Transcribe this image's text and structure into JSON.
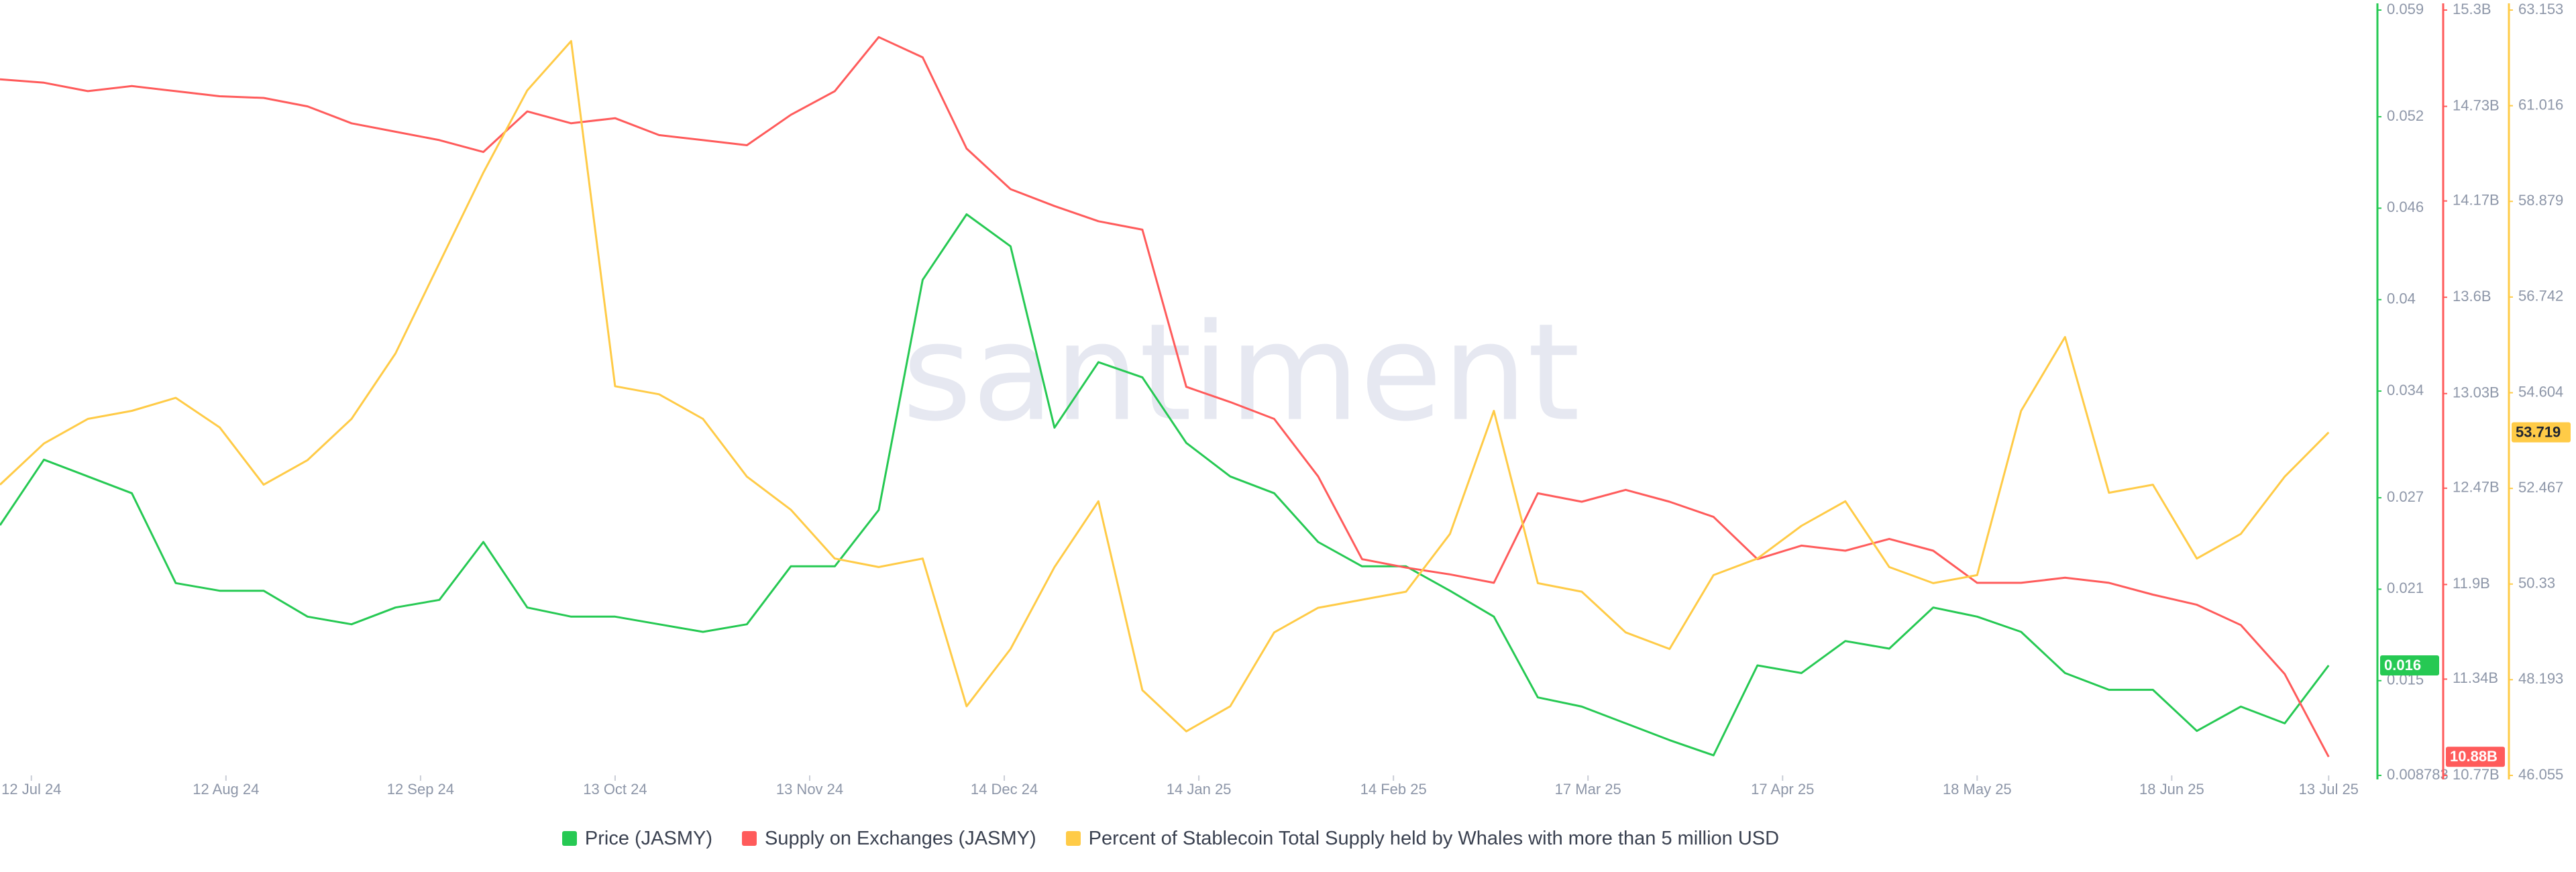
{
  "chart_data": {
    "type": "line",
    "watermark": "santiment",
    "x": [
      "2024-07-07",
      "2024-07-14",
      "2024-07-21",
      "2024-07-28",
      "2024-08-04",
      "2024-08-11",
      "2024-08-18",
      "2024-08-25",
      "2024-09-01",
      "2024-09-08",
      "2024-09-15",
      "2024-09-22",
      "2024-09-29",
      "2024-10-06",
      "2024-10-13",
      "2024-10-20",
      "2024-10-27",
      "2024-11-03",
      "2024-11-10",
      "2024-11-17",
      "2024-11-24",
      "2024-12-01",
      "2024-12-08",
      "2024-12-15",
      "2024-12-22",
      "2024-12-29",
      "2025-01-05",
      "2025-01-12",
      "2025-01-19",
      "2025-01-26",
      "2025-02-02",
      "2025-02-09",
      "2025-02-16",
      "2025-02-23",
      "2025-03-02",
      "2025-03-09",
      "2025-03-16",
      "2025-03-23",
      "2025-03-30",
      "2025-04-06",
      "2025-04-13",
      "2025-04-20",
      "2025-04-27",
      "2025-05-04",
      "2025-05-11",
      "2025-05-18",
      "2025-05-25",
      "2025-06-01",
      "2025-06-08",
      "2025-06-15",
      "2025-06-22",
      "2025-06-29",
      "2025-07-06",
      "2025-07-13"
    ],
    "xlim": [
      "2024-07-07",
      "2025-07-15"
    ],
    "xticks": [
      {
        "value": "2024-07-12",
        "label": "12 Jul 24"
      },
      {
        "value": "2024-08-12",
        "label": "12 Aug 24"
      },
      {
        "value": "2024-09-12",
        "label": "12 Sep 24"
      },
      {
        "value": "2024-10-13",
        "label": "13 Oct 24"
      },
      {
        "value": "2024-11-13",
        "label": "13 Nov 24"
      },
      {
        "value": "2024-12-14",
        "label": "14 Dec 24"
      },
      {
        "value": "2025-01-14",
        "label": "14 Jan 25"
      },
      {
        "value": "2025-02-14",
        "label": "14 Feb 25"
      },
      {
        "value": "2025-03-17",
        "label": "17 Mar 25"
      },
      {
        "value": "2025-04-17",
        "label": "17 Apr 25"
      },
      {
        "value": "2025-05-18",
        "label": "18 May 25"
      },
      {
        "value": "2025-06-18",
        "label": "18 Jun 25"
      },
      {
        "value": "2025-07-13",
        "label": "13 Jul 25"
      }
    ],
    "ylim": [
      0.008783,
      0.059
    ],
    "yticks": [
      0.059,
      0.052,
      0.046,
      0.04,
      0.034,
      0.027,
      0.021,
      0.015,
      0.008783
    ],
    "y2lim": [
      10770000000,
      15300000000
    ],
    "y2ticks": [
      {
        "value": 15300000000,
        "label": "15.3B"
      },
      {
        "value": 14730000000,
        "label": "14.73B"
      },
      {
        "value": 14170000000,
        "label": "14.17B"
      },
      {
        "value": 13600000000,
        "label": "13.6B"
      },
      {
        "value": 13030000000,
        "label": "13.03B"
      },
      {
        "value": 12470000000,
        "label": "12.47B"
      },
      {
        "value": 11900000000,
        "label": "11.9B"
      },
      {
        "value": 11340000000,
        "label": "11.34B"
      },
      {
        "value": 10770000000,
        "label": "10.77B"
      }
    ],
    "y3lim": [
      46.055,
      63.153
    ],
    "y3ticks": [
      63.153,
      61.016,
      58.879,
      56.742,
      54.604,
      52.467,
      50.33,
      48.193,
      46.055
    ],
    "series": [
      {
        "name": "Price (JASMY)",
        "color": "#26c953",
        "axis": "y",
        "current_value_label": "0.016",
        "values": [
          0.0252,
          0.0295,
          0.0284,
          0.0273,
          0.0214,
          0.0209,
          0.0209,
          0.0192,
          0.0187,
          0.0198,
          0.0203,
          0.0241,
          0.0198,
          0.0192,
          0.0192,
          0.0187,
          0.0182,
          0.0187,
          0.0225,
          0.0225,
          0.0262,
          0.0413,
          0.0456,
          0.0435,
          0.0316,
          0.0359,
          0.0349,
          0.0306,
          0.0284,
          0.0273,
          0.0241,
          0.0225,
          0.0225,
          0.0209,
          0.0192,
          0.0139,
          0.0133,
          0.0122,
          0.0111,
          0.0101,
          0.016,
          0.0155,
          0.0176,
          0.0171,
          0.0198,
          0.0192,
          0.0182,
          0.0155,
          0.0144,
          0.0144,
          0.0117,
          0.0133,
          0.0122,
          0.016
        ]
      },
      {
        "name": "Supply on Exchanges (JASMY)",
        "color": "#ff5b5b",
        "axis": "y2",
        "current_value_label": "10.88B",
        "values": [
          14890000000,
          14870000000,
          14820000000,
          14850000000,
          14820000000,
          14790000000,
          14780000000,
          14730000000,
          14630000000,
          14580000000,
          14530000000,
          14460000000,
          14700000000,
          14630000000,
          14660000000,
          14560000000,
          14530000000,
          14500000000,
          14680000000,
          14820000000,
          15140000000,
          15020000000,
          14480000000,
          14240000000,
          14140000000,
          14050000000,
          14000000000,
          13070000000,
          12980000000,
          12880000000,
          12540000000,
          12050000000,
          12000000000,
          11960000000,
          11910000000,
          12440000000,
          12390000000,
          12460000000,
          12390000000,
          12300000000,
          12050000000,
          12130000000,
          12100000000,
          12170000000,
          12100000000,
          11910000000,
          11910000000,
          11940000000,
          11910000000,
          11840000000,
          11780000000,
          11660000000,
          11370000000,
          10880000000
        ]
      },
      {
        "name": "Percent of Stablecoin Total Supply held by Whales with more than 5 million USD",
        "color": "#ffcb47",
        "axis": "y3",
        "current_value_label": "53.719",
        "values": [
          52.55,
          53.47,
          54.02,
          54.2,
          54.49,
          53.83,
          52.55,
          53.1,
          54.02,
          55.48,
          57.5,
          59.52,
          61.36,
          62.46,
          54.75,
          54.57,
          54.02,
          52.73,
          51.99,
          50.9,
          50.71,
          50.9,
          47.6,
          48.88,
          50.71,
          52.18,
          47.96,
          47.04,
          47.6,
          49.25,
          49.8,
          49.98,
          50.16,
          51.45,
          54.2,
          50.35,
          50.16,
          49.25,
          48.88,
          50.53,
          50.9,
          51.63,
          52.18,
          50.71,
          50.35,
          50.53,
          54.2,
          55.85,
          52.37,
          52.55,
          50.9,
          51.45,
          52.73,
          53.719
        ]
      }
    ]
  }
}
